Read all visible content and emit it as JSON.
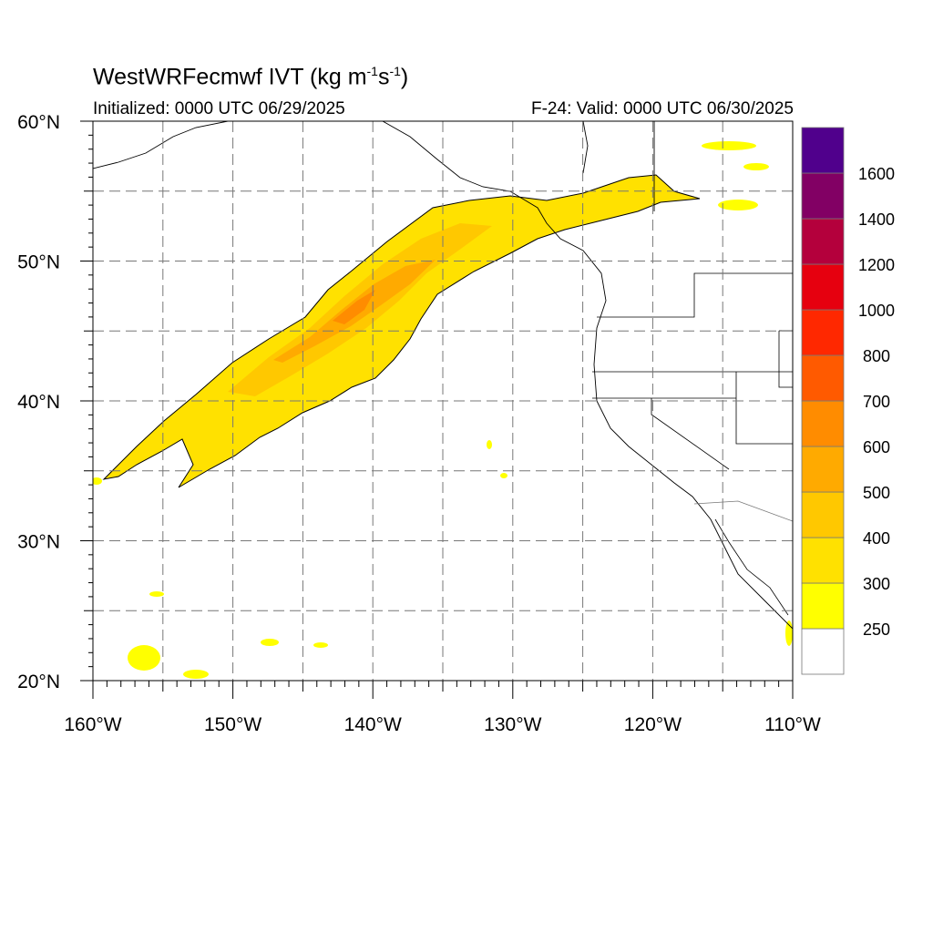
{
  "header": {
    "model": "WestWRFecmwf",
    "variable": "IVT",
    "units_prefix": "(kg m",
    "units_exp1": "-1",
    "units_mid": "s",
    "units_exp2": "-1",
    "units_suffix": ")",
    "initialized": "Initialized: 0000 UTC 06/29/2025",
    "valid": "F-24: Valid: 0000 UTC 06/30/2025"
  },
  "map": {
    "lon_range": [
      -160,
      -110
    ],
    "lat_range": [
      20,
      60
    ],
    "lon_labels": [
      "160°W",
      "150°W",
      "140°W",
      "130°W",
      "120°W",
      "110°W"
    ],
    "lat_labels": [
      "20°N",
      "30°N",
      "40°N",
      "50°N",
      "60°N"
    ],
    "grid_lons": [
      -155,
      -150,
      -145,
      -140,
      -135,
      -130,
      -125,
      -120,
      -115
    ],
    "grid_lats": [
      25,
      30,
      35,
      40,
      45,
      50,
      55
    ]
  },
  "colorbar": {
    "labels": [
      "250",
      "300",
      "400",
      "500",
      "600",
      "700",
      "800",
      "1000",
      "1200",
      "1400",
      "1600"
    ],
    "colors": [
      "#ffffff",
      "#ffff00",
      "#ffe100",
      "#ffc800",
      "#ffaa00",
      "#ff8c00",
      "#ff5a00",
      "#ff2800",
      "#e6000f",
      "#b4003c",
      "#820064",
      "#50008c"
    ]
  },
  "features": {
    "ar_band_color": "#ffd200",
    "ar_core_color": "#ffb000",
    "ar_max_color": "#ff8c00"
  }
}
